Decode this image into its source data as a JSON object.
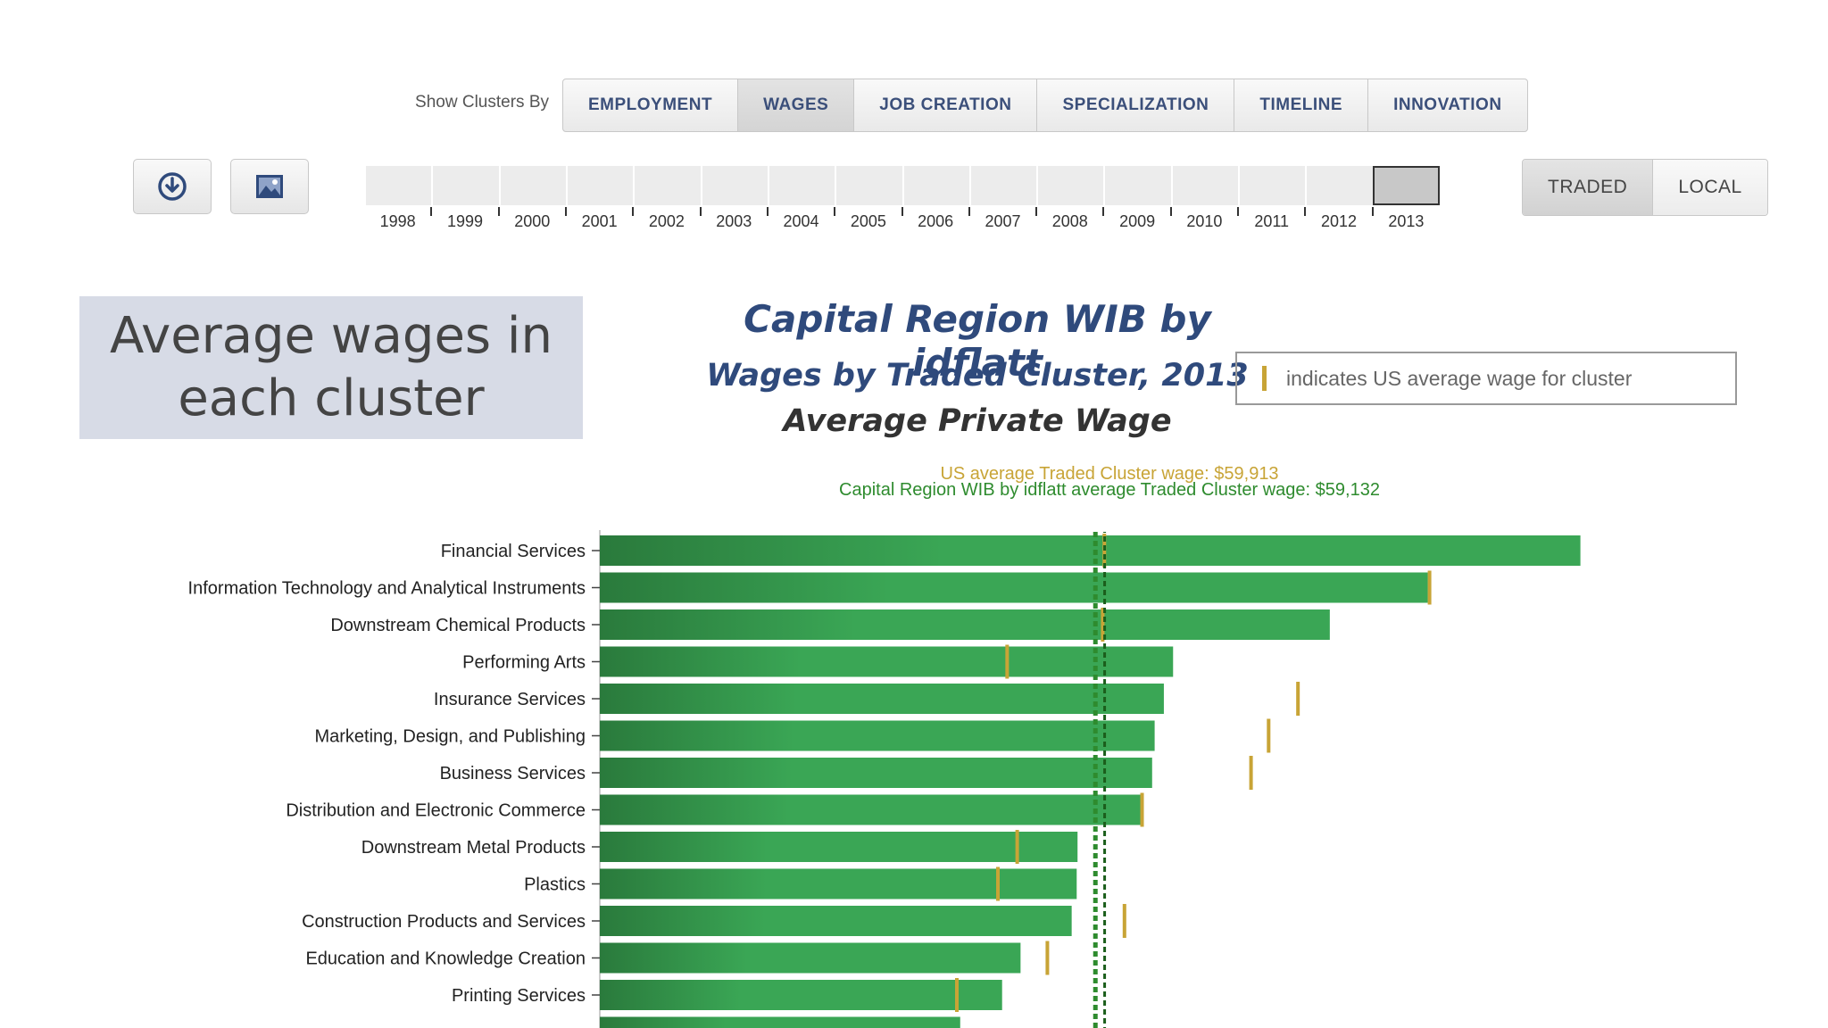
{
  "controls": {
    "show_by_label": "Show Clusters By",
    "tabs": [
      "EMPLOYMENT",
      "WAGES",
      "JOB CREATION",
      "SPECIALIZATION",
      "TIMELINE",
      "INNOVATION"
    ],
    "active_tab": "WAGES",
    "download_icon": "download-icon",
    "image_icon": "image-icon",
    "years": [
      "1998",
      "1999",
      "2000",
      "2001",
      "2002",
      "2003",
      "2004",
      "2005",
      "2006",
      "2007",
      "2008",
      "2009",
      "2010",
      "2011",
      "2012",
      "2013"
    ],
    "selected_year": "2013",
    "modes": [
      "TRADED",
      "LOCAL"
    ],
    "active_mode": "TRADED"
  },
  "callout": {
    "line1": "Average wages in",
    "line2": "each cluster"
  },
  "header": {
    "title": "Capital Region WIB by idflatt",
    "subtitle": "Wages by Traded Cluster, 2013",
    "metric": "Average Private Wage",
    "legend_text": "indicates US average wage for cluster"
  },
  "colors": {
    "bar": "#3aa655",
    "bar_dark": "#2a7a3c",
    "us_marker": "#c8a436",
    "regional_line": "#2e8b2e",
    "us_line": "#c8a436",
    "title": "#2f4a7c"
  },
  "chart_data": {
    "type": "bar",
    "orientation": "horizontal",
    "title": "Wages by Traded Cluster, 2013",
    "xlabel": "",
    "ylabel": "",
    "xlim": [
      0,
      118000
    ],
    "reference_lines": [
      {
        "label": "US average Traded Cluster wage: $59,913",
        "value": 59913,
        "color": "#c8a436"
      },
      {
        "label": "Capital Region WIB by idflatt average Traded Cluster wage: $59,132",
        "value": 59132,
        "color": "#2e8b2e"
      }
    ],
    "categories": [
      "Financial Services",
      "Information Technology and Analytical Instruments",
      "Downstream Chemical Products",
      "Performing Arts",
      "Insurance Services",
      "Marketing, Design, and Publishing",
      "Business Services",
      "Distribution and Electronic Commerce",
      "Downstream Metal Products",
      "Plastics",
      "Construction Products and Services",
      "Education and Knowledge Creation",
      "Printing Services"
    ],
    "series": [
      {
        "name": "Average Private Wage",
        "values": [
          117000,
          98800,
          87100,
          68400,
          67300,
          66200,
          65900,
          64500,
          57000,
          56900,
          56300,
          50200,
          48000
        ]
      },
      {
        "name": "US average wage",
        "values": [
          60200,
          99000,
          60000,
          48600,
          83300,
          79800,
          77700,
          64700,
          49800,
          47500,
          62600,
          53400,
          42600
        ]
      }
    ]
  }
}
